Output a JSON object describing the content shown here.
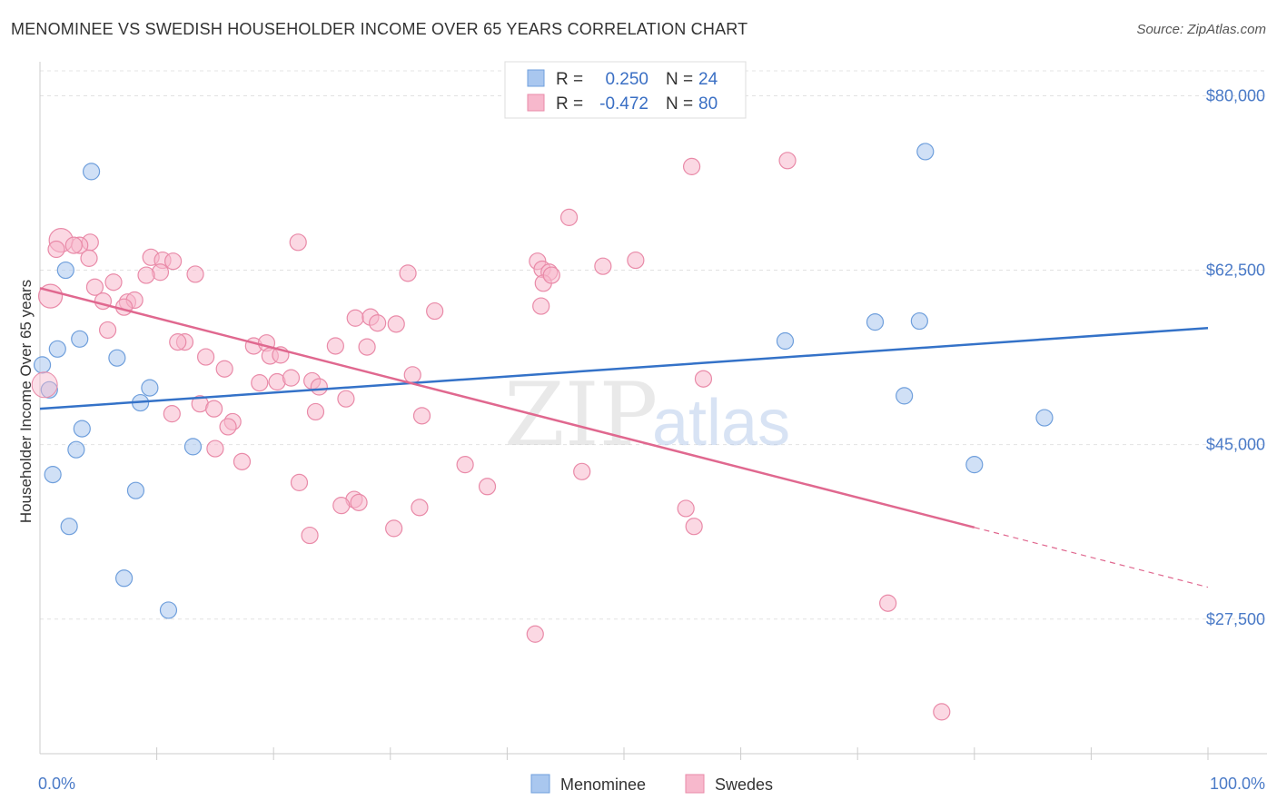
{
  "title": "MENOMINEE VS SWEDISH HOUSEHOLDER INCOME OVER 65 YEARS CORRELATION CHART",
  "source": "Source: ZipAtlas.com",
  "watermark": {
    "zip": "ZIP",
    "atlas": "atlas"
  },
  "legend": {
    "rows": [
      {
        "r_label": "R =",
        "r_value": "0.250",
        "n_label": "N =",
        "n_value": "24",
        "color": "#a9c7ef",
        "stroke": "#6f9fdc"
      },
      {
        "r_label": "R =",
        "r_value": "-0.472",
        "n_label": "N =",
        "n_value": "80",
        "color": "#f7b8cc",
        "stroke": "#e98aa8"
      }
    ]
  },
  "bottom_legend": [
    {
      "label": "Menominee",
      "color": "#a9c7ef",
      "stroke": "#6f9fdc"
    },
    {
      "label": "Swedes",
      "color": "#f7b8cc",
      "stroke": "#e98aa8"
    }
  ],
  "chart_data": {
    "type": "scatter",
    "title": "MENOMINEE VS SWEDISH HOUSEHOLDER INCOME OVER 65 YEARS CORRELATION CHART",
    "xlabel": "",
    "ylabel": "Householder Income Over 65 years",
    "x_tick_labels": [
      "0.0%",
      "100.0%"
    ],
    "y_tick_labels": [
      "$80,000",
      "$62,500",
      "$45,000",
      "$27,500"
    ],
    "y_ticks": [
      80000,
      62500,
      45000,
      27500
    ],
    "xlim": [
      0,
      100
    ],
    "ylim": [
      14000,
      82500
    ],
    "grid": true,
    "legend_position": "top-center",
    "series": [
      {
        "name": "Menominee",
        "color": "#6f9fdc",
        "fill": "#a9c7ef",
        "trend": {
          "x0": 0,
          "y0": 48600,
          "x1": 100,
          "y1": 56700,
          "dashed_from": null
        },
        "points": [
          [
            4.4,
            72400
          ],
          [
            2.2,
            62500
          ],
          [
            3.4,
            55600
          ],
          [
            1.5,
            54600
          ],
          [
            6.6,
            53700
          ],
          [
            0.2,
            53000
          ],
          [
            0.8,
            50500
          ],
          [
            9.4,
            50700
          ],
          [
            8.6,
            49200
          ],
          [
            3.6,
            46600
          ],
          [
            3.1,
            44500
          ],
          [
            13.1,
            44800
          ],
          [
            1.1,
            42000
          ],
          [
            8.2,
            40400
          ],
          [
            2.5,
            36800
          ],
          [
            7.2,
            31600
          ],
          [
            11.0,
            28400
          ],
          [
            75.8,
            74400
          ],
          [
            71.5,
            57300
          ],
          [
            75.3,
            57400
          ],
          [
            63.8,
            55400
          ],
          [
            74.0,
            49900
          ],
          [
            86.0,
            47700
          ],
          [
            80.0,
            43000
          ]
        ]
      },
      {
        "name": "Swedes",
        "color": "#e98aa8",
        "fill": "#f7b8cc",
        "trend": {
          "x0": 0,
          "y0": 60700,
          "x1": 100,
          "y1": 30700,
          "dashed_from": 80
        },
        "points": [
          [
            1.8,
            65500
          ],
          [
            4.3,
            65300
          ],
          [
            3.4,
            65000
          ],
          [
            2.9,
            65000
          ],
          [
            1.4,
            64600
          ],
          [
            4.2,
            63700
          ],
          [
            9.5,
            63800
          ],
          [
            10.5,
            63500
          ],
          [
            11.4,
            63400
          ],
          [
            10.3,
            62300
          ],
          [
            9.1,
            62000
          ],
          [
            13.3,
            62100
          ],
          [
            6.3,
            61300
          ],
          [
            4.7,
            60800
          ],
          [
            0.9,
            59900
          ],
          [
            5.4,
            59400
          ],
          [
            7.5,
            59300
          ],
          [
            8.1,
            59500
          ],
          [
            7.2,
            58800
          ],
          [
            5.8,
            56500
          ],
          [
            12.4,
            55300
          ],
          [
            11.8,
            55300
          ],
          [
            14.2,
            53800
          ],
          [
            15.8,
            52600
          ],
          [
            18.3,
            54900
          ],
          [
            19.4,
            55200
          ],
          [
            19.7,
            53900
          ],
          [
            20.6,
            54000
          ],
          [
            18.8,
            51200
          ],
          [
            20.3,
            51300
          ],
          [
            21.5,
            51700
          ],
          [
            23.3,
            51400
          ],
          [
            23.9,
            50800
          ],
          [
            22.1,
            65300
          ],
          [
            13.7,
            49100
          ],
          [
            14.9,
            48600
          ],
          [
            11.3,
            48100
          ],
          [
            16.5,
            47300
          ],
          [
            16.1,
            46800
          ],
          [
            15.0,
            44600
          ],
          [
            17.3,
            43300
          ],
          [
            25.3,
            54900
          ],
          [
            27.0,
            57700
          ],
          [
            28.3,
            57800
          ],
          [
            28.9,
            57200
          ],
          [
            30.5,
            57100
          ],
          [
            28.0,
            54800
          ],
          [
            31.9,
            52000
          ],
          [
            32.7,
            47900
          ],
          [
            23.6,
            48300
          ],
          [
            26.2,
            49600
          ],
          [
            33.8,
            58400
          ],
          [
            31.5,
            62200
          ],
          [
            26.9,
            39500
          ],
          [
            27.3,
            39200
          ],
          [
            25.8,
            38900
          ],
          [
            30.3,
            36600
          ],
          [
            32.5,
            38700
          ],
          [
            38.3,
            40800
          ],
          [
            36.4,
            43000
          ],
          [
            22.2,
            41200
          ],
          [
            23.1,
            35900
          ],
          [
            51.0,
            63500
          ],
          [
            48.2,
            62900
          ],
          [
            42.6,
            63400
          ],
          [
            43.0,
            62600
          ],
          [
            43.6,
            62300
          ],
          [
            43.1,
            61200
          ],
          [
            43.8,
            62000
          ],
          [
            42.9,
            58900
          ],
          [
            55.8,
            72900
          ],
          [
            64.0,
            73500
          ],
          [
            45.3,
            67800
          ],
          [
            56.8,
            51600
          ],
          [
            46.4,
            42300
          ],
          [
            55.3,
            38600
          ],
          [
            56.0,
            36800
          ],
          [
            72.6,
            29100
          ],
          [
            77.2,
            18200
          ],
          [
            42.4,
            26000
          ]
        ]
      }
    ]
  }
}
